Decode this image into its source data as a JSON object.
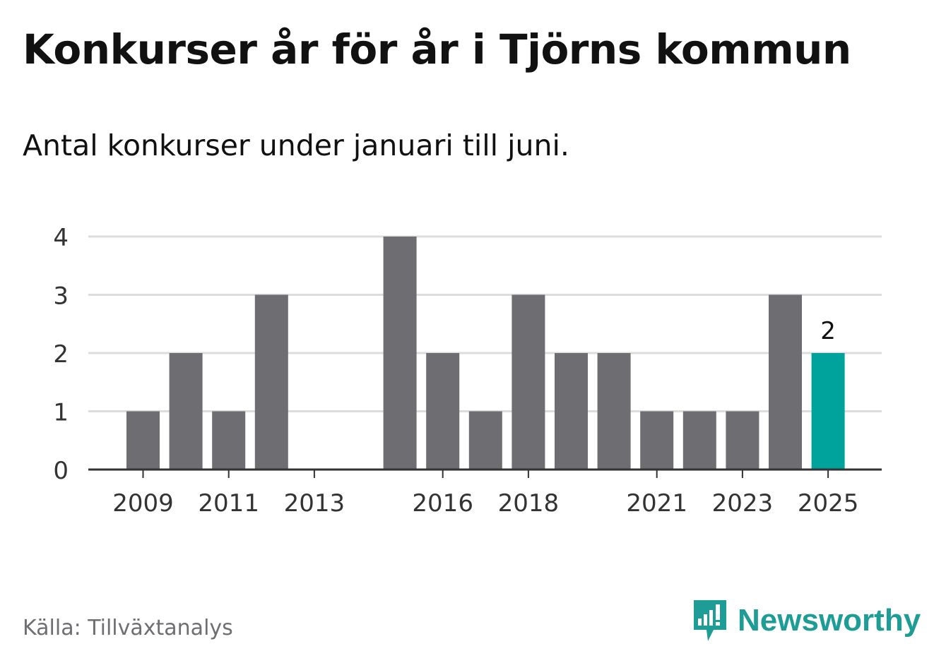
{
  "header": {
    "title": "Konkurser år för år i Tjörns kommun",
    "subtitle": "Antal konkurser under januari till juni."
  },
  "footer": {
    "source": "Källa: Tillväxtanalys",
    "brand": "Newsworthy",
    "brand_icon": "newsworthy-logo-icon"
  },
  "colors": {
    "bar": "#6e6d72",
    "highlight": "#00a39b",
    "grid": "#dcdcdc",
    "axis": "#333333",
    "brand": "#1e9c96"
  },
  "chart_data": {
    "type": "bar",
    "categories": [
      "2009",
      "2010",
      "2011",
      "2012",
      "2013",
      "2014",
      "2015",
      "2016",
      "2017",
      "2018",
      "2019",
      "2020",
      "2021",
      "2022",
      "2023",
      "2024",
      "2025"
    ],
    "values": [
      1,
      2,
      1,
      3,
      0,
      0,
      4,
      2,
      1,
      3,
      2,
      2,
      1,
      1,
      1,
      3,
      2
    ],
    "xticks": [
      "2009",
      "2011",
      "2013",
      "2016",
      "2018",
      "2021",
      "2023",
      "2025"
    ],
    "yticks": [
      0,
      1,
      2,
      3,
      4
    ],
    "ylim": [
      0,
      4
    ],
    "highlight": "2025",
    "data_labels": [
      {
        "category": "2025",
        "value": "2"
      }
    ],
    "title": "Konkurser år för år i Tjörns kommun",
    "xlabel": "",
    "ylabel": "",
    "grid": true,
    "legend": "none"
  }
}
